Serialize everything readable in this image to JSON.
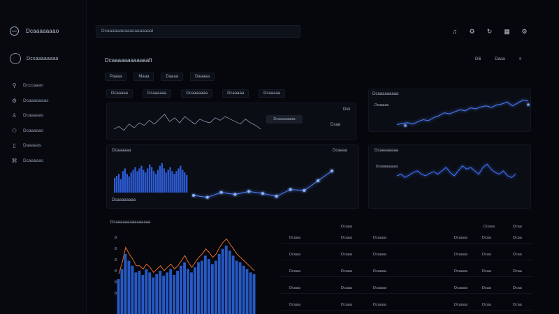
{
  "app": {
    "brand": "Dcaaaaaaao",
    "profile": "Dcsaaaaaaaa"
  },
  "sidebar": {
    "items": [
      {
        "icon": "pin-icon",
        "glyph": "⚲",
        "label": "Dcccaaan"
      },
      {
        "icon": "sliders-icon",
        "glyph": "⚙",
        "label": "Dcaaaaaaas"
      },
      {
        "icon": "person-icon",
        "glyph": "♙",
        "label": "Dcaaaaas"
      },
      {
        "icon": "user-icon",
        "glyph": "⚇",
        "label": "Dcaaaaas"
      },
      {
        "icon": "bookmark-icon",
        "glyph": "▯",
        "label": "Daaaaas"
      },
      {
        "icon": "tag-icon",
        "glyph": "⌘",
        "label": "Dcaaaaas"
      }
    ]
  },
  "search": {
    "value": "Dcaaaaaaeaaasaaaaaaal"
  },
  "topbar_icons": [
    "bell-icon",
    "gear-icon",
    "refresh-icon",
    "grid-icon",
    "settings-icon"
  ],
  "topbar_glyphs": [
    "♫",
    "⚙",
    "↻",
    "▦",
    "⚙"
  ],
  "main": {
    "title": "Dcaaaaaaaaaaaaft",
    "actions": [
      "Dlii",
      "Daaa",
      "≡"
    ],
    "chips_row1": [
      "Paaaa",
      "Maaa",
      "Daaaa",
      "Daaaaa"
    ],
    "chips_row2": [
      "Dcaaaaa",
      "Dcaaaaaa",
      "Dcaaaaaaa",
      "Dcaaaaa",
      "Dcaaaaa"
    ]
  },
  "panel_a": {
    "tooltip": "Dcaaaaaaaa",
    "tag": "Dsk",
    "sublabel": "Dsaa"
  },
  "panel_b": {
    "label": "Dcaaaaaa",
    "legend": "Dcaaaa",
    "footer": "Dcaaaaaaaa"
  },
  "panel_c": {
    "label": "Dcaaaaaaaaa",
    "legend": "Dcaaaaa"
  },
  "panel_d": {
    "label": "Dcaaaaaaaa",
    "legend": "Dcaaaaaaaaa"
  },
  "table": {
    "title": "Dcaaaaaaaaaaaaaaa",
    "header_left": "Dcaaa",
    "header_right": [
      "Dcaaa",
      "Dcaa"
    ],
    "rows": [
      [
        "Dcaaa",
        "Dcaaa",
        "Dcaaaa",
        "Dcaaaa",
        "Dcaa",
        "Dcaa"
      ],
      [
        "Dcaaa",
        "Dcaaa",
        "Dcaaaa",
        "Dcaaaa",
        "Dcaa",
        "Dcaa"
      ],
      [
        "Dcaaa",
        "Dcaaa",
        "Dcaaaa",
        "Dcaaaa",
        "Dcaa",
        "Dcaa"
      ],
      [
        "Dcaaa",
        "Dcaaa",
        "Dcaaaa",
        "Dcaaaa",
        "Dcaa",
        "Dcaa"
      ],
      [
        "Dcaaa",
        "Dcaaa",
        "Dcaaaa",
        "Dcaaaa",
        "Dcaa",
        "Dcaa"
      ]
    ],
    "y_ticks": [
      "8",
      "8",
      "8",
      "8",
      "8",
      "8"
    ]
  },
  "colors": {
    "accent": "#2f6cff",
    "glow": "#5a8dff",
    "orange": "#e06a2a",
    "bg": "#05070c"
  },
  "chart_data": [
    {
      "type": "line",
      "title": "",
      "x": [
        0,
        1,
        2,
        3,
        4,
        5,
        6,
        7,
        8,
        9,
        10,
        11,
        12,
        13,
        14,
        15,
        16,
        17,
        18,
        19,
        20,
        21,
        22,
        23,
        24,
        25,
        26,
        27,
        28,
        29
      ],
      "series": [
        {
          "values": [
            40,
            42,
            39,
            44,
            41,
            45,
            43,
            47,
            44,
            48,
            52,
            46,
            49,
            45,
            50,
            47,
            44,
            48,
            46,
            45,
            49,
            47,
            50,
            48,
            46,
            44,
            48,
            45,
            43,
            40
          ]
        }
      ]
    },
    {
      "type": "bar",
      "title": "",
      "x": [
        0,
        1,
        2,
        3,
        4,
        5,
        6,
        7,
        8,
        9,
        10,
        11,
        12,
        13,
        14,
        15,
        16,
        17,
        18,
        19,
        20,
        21,
        22,
        23,
        24,
        25,
        26,
        27,
        28,
        29,
        30,
        31,
        32,
        33,
        34,
        35
      ],
      "series": [
        {
          "values": [
            52,
            55,
            58,
            50,
            62,
            66,
            58,
            54,
            60,
            64,
            68,
            62,
            66,
            70,
            64,
            60,
            66,
            72,
            68,
            62,
            58,
            64,
            70,
            74,
            66,
            60,
            64,
            68,
            62,
            58,
            62,
            66,
            70,
            64,
            60,
            56
          ]
        }
      ]
    },
    {
      "type": "line",
      "title": "",
      "x": [
        0,
        1,
        2,
        3,
        4,
        5,
        6,
        7,
        8,
        9,
        10
      ],
      "series": [
        {
          "values": [
            30,
            28,
            33,
            31,
            34,
            32,
            29,
            36,
            35,
            45,
            55
          ]
        }
      ]
    },
    {
      "type": "line",
      "title": "",
      "x": [
        0,
        1,
        2,
        3,
        4,
        5,
        6,
        7,
        8,
        9,
        10,
        11,
        12,
        13,
        14,
        15,
        16,
        17,
        18,
        19,
        20,
        21,
        22,
        23,
        24,
        25
      ],
      "series": [
        {
          "values": [
            20,
            22,
            24,
            21,
            26,
            30,
            28,
            34,
            38,
            44,
            42,
            46,
            50,
            48,
            54,
            52,
            56,
            58,
            55,
            60,
            62,
            66,
            58,
            64,
            70,
            68
          ]
        }
      ]
    },
    {
      "type": "line",
      "title": "",
      "x": [
        0,
        1,
        2,
        3,
        4,
        5,
        6,
        7,
        8,
        9,
        10,
        11,
        12,
        13,
        14,
        15,
        16,
        17,
        18,
        19,
        20,
        21,
        22,
        23,
        24,
        25,
        26,
        27,
        28,
        29
      ],
      "series": [
        {
          "values": [
            60,
            62,
            58,
            61,
            64,
            66,
            62,
            60,
            63,
            65,
            62,
            66,
            70,
            64,
            60,
            66,
            72,
            68,
            70,
            66,
            62,
            70,
            74,
            68,
            64,
            62,
            66,
            60,
            58,
            62
          ]
        }
      ]
    },
    {
      "type": "area",
      "title": "",
      "x": [
        0,
        1,
        2,
        3,
        4,
        5,
        6,
        7,
        8,
        9,
        10,
        11,
        12,
        13,
        14,
        15,
        16,
        17,
        18,
        19,
        20,
        21,
        22,
        23,
        24,
        25,
        26,
        27,
        28,
        29,
        30,
        31,
        32,
        33,
        34,
        35,
        36,
        37,
        38,
        39
      ],
      "series": [
        {
          "values": [
            50,
            62,
            80,
            72,
            66,
            58,
            60,
            55,
            62,
            58,
            52,
            56,
            60,
            54,
            58,
            62,
            55,
            60,
            66,
            70,
            62,
            58,
            64,
            70,
            72,
            78,
            74,
            68,
            72,
            80,
            86,
            90,
            84,
            78,
            72,
            70,
            66,
            62,
            58,
            56
          ]
        },
        {
          "values": [
            56,
            70,
            88,
            80,
            74,
            66,
            66,
            62,
            68,
            64,
            58,
            62,
            66,
            60,
            64,
            68,
            62,
            66,
            72,
            78,
            70,
            64,
            70,
            76,
            80,
            86,
            82,
            76,
            80,
            88,
            94,
            98,
            92,
            86,
            80,
            76,
            72,
            68,
            64,
            60
          ]
        }
      ]
    }
  ]
}
